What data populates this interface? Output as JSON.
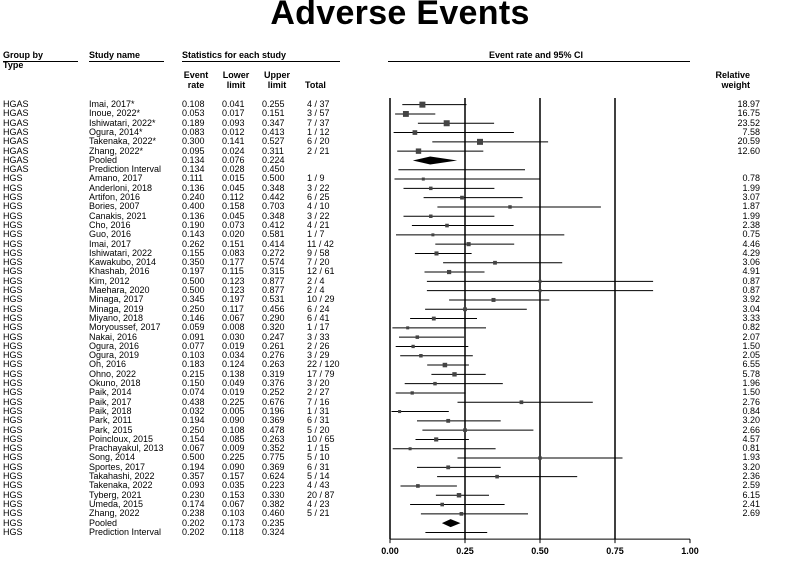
{
  "title": "Adverse Events",
  "headers": {
    "group_by": "Group by",
    "type": "Type",
    "study_name": "Study name",
    "stats": "Statistics for each study",
    "event_rate_1": "Event",
    "event_rate_2": "rate",
    "lower_1": "Lower",
    "lower_2": "limit",
    "upper_1": "Upper",
    "upper_2": "limit",
    "total": "Total",
    "ci": "Event rate and 95% CI",
    "relative_1": "Relative",
    "relative_2": "weight"
  },
  "chart_data": {
    "type": "forest",
    "title": "Adverse Events",
    "xlim": [
      0,
      1
    ],
    "xticks": [
      "0.00",
      "0.25",
      "0.50",
      "0.75",
      "1.00"
    ],
    "reference_lines": [
      0.25,
      0.5,
      0.75
    ],
    "rows": [
      {
        "group": "HGAS",
        "study": "Imai, 2017*",
        "rate": 0.108,
        "lower": 0.041,
        "upper": 0.255,
        "rate_s": "0.108",
        "lower_s": "0.041",
        "upper_s": "0.255",
        "total": "4 / 37",
        "weight": "18.97",
        "kind": "study"
      },
      {
        "group": "HGAS",
        "study": "Inoue, 2022*",
        "rate": 0.053,
        "lower": 0.017,
        "upper": 0.151,
        "rate_s": "0.053",
        "lower_s": "0.017",
        "upper_s": "0.151",
        "total": "3 / 57",
        "weight": "16.75",
        "kind": "study"
      },
      {
        "group": "HGAS",
        "study": "Ishiwatari, 2022*",
        "rate": 0.189,
        "lower": 0.093,
        "upper": 0.347,
        "rate_s": "0.189",
        "lower_s": "0.093",
        "upper_s": "0.347",
        "total": "7 / 37",
        "weight": "23.52",
        "kind": "study"
      },
      {
        "group": "HGAS",
        "study": "Ogura, 2014*",
        "rate": 0.083,
        "lower": 0.012,
        "upper": 0.413,
        "rate_s": "0.083",
        "lower_s": "0.012",
        "upper_s": "0.413",
        "total": "1 / 12",
        "weight": "7.58",
        "kind": "study"
      },
      {
        "group": "HGAS",
        "study": "Takenaka, 2022*",
        "rate": 0.3,
        "lower": 0.141,
        "upper": 0.527,
        "rate_s": "0.300",
        "lower_s": "0.141",
        "upper_s": "0.527",
        "total": "6 / 20",
        "weight": "20.59",
        "kind": "study"
      },
      {
        "group": "HGAS",
        "study": "Zhang, 2022*",
        "rate": 0.095,
        "lower": 0.024,
        "upper": 0.311,
        "rate_s": "0.095",
        "lower_s": "0.024",
        "upper_s": "0.311",
        "total": "2 / 21",
        "weight": "12.60",
        "kind": "study"
      },
      {
        "group": "HGAS",
        "study": "Pooled",
        "rate": 0.134,
        "lower": 0.076,
        "upper": 0.224,
        "rate_s": "0.134",
        "lower_s": "0.076",
        "upper_s": "0.224",
        "total": "",
        "weight": "",
        "kind": "pooled"
      },
      {
        "group": "HGAS",
        "study": "Prediction Interval",
        "rate": 0.134,
        "lower": 0.028,
        "upper": 0.45,
        "rate_s": "0.134",
        "lower_s": "0.028",
        "upper_s": "0.450",
        "total": "",
        "weight": "",
        "kind": "pi"
      },
      {
        "group": "HGS",
        "study": "Amano, 2017",
        "rate": 0.111,
        "lower": 0.015,
        "upper": 0.5,
        "rate_s": "0.111",
        "lower_s": "0.015",
        "upper_s": "0.500",
        "total": "1 / 9",
        "weight": "0.78",
        "kind": "study"
      },
      {
        "group": "HGS",
        "study": "Anderloni, 2018",
        "rate": 0.136,
        "lower": 0.045,
        "upper": 0.348,
        "rate_s": "0.136",
        "lower_s": "0.045",
        "upper_s": "0.348",
        "total": "3 / 22",
        "weight": "1.99",
        "kind": "study"
      },
      {
        "group": "HGS",
        "study": "Artifon, 2016",
        "rate": 0.24,
        "lower": 0.112,
        "upper": 0.442,
        "rate_s": "0.240",
        "lower_s": "0.112",
        "upper_s": "0.442",
        "total": "6 / 25",
        "weight": "3.07",
        "kind": "study"
      },
      {
        "group": "HGS",
        "study": "Bories, 2007",
        "rate": 0.4,
        "lower": 0.158,
        "upper": 0.703,
        "rate_s": "0.400",
        "lower_s": "0.158",
        "upper_s": "0.703",
        "total": "4 / 10",
        "weight": "1.87",
        "kind": "study"
      },
      {
        "group": "HGS",
        "study": "Canakis, 2021",
        "rate": 0.136,
        "lower": 0.045,
        "upper": 0.348,
        "rate_s": "0.136",
        "lower_s": "0.045",
        "upper_s": "0.348",
        "total": "3 / 22",
        "weight": "1.99",
        "kind": "study"
      },
      {
        "group": "HGS",
        "study": "Cho, 2016",
        "rate": 0.19,
        "lower": 0.073,
        "upper": 0.412,
        "rate_s": "0.190",
        "lower_s": "0.073",
        "upper_s": "0.412",
        "total": "4 / 21",
        "weight": "2.38",
        "kind": "study"
      },
      {
        "group": "HGS",
        "study": "Guo, 2016",
        "rate": 0.143,
        "lower": 0.02,
        "upper": 0.581,
        "rate_s": "0.143",
        "lower_s": "0.020",
        "upper_s": "0.581",
        "total": "1 / 7",
        "weight": "0.75",
        "kind": "study"
      },
      {
        "group": "HGS",
        "study": "Imai, 2017",
        "rate": 0.262,
        "lower": 0.151,
        "upper": 0.414,
        "rate_s": "0.262",
        "lower_s": "0.151",
        "upper_s": "0.414",
        "total": "11 / 42",
        "weight": "4.46",
        "kind": "study"
      },
      {
        "group": "HGS",
        "study": "Ishiwatari, 2022",
        "rate": 0.155,
        "lower": 0.083,
        "upper": 0.272,
        "rate_s": "0.155",
        "lower_s": "0.083",
        "upper_s": "0.272",
        "total": "9 / 58",
        "weight": "4.29",
        "kind": "study"
      },
      {
        "group": "HGS",
        "study": "Kawakubo, 2014",
        "rate": 0.35,
        "lower": 0.177,
        "upper": 0.574,
        "rate_s": "0.350",
        "lower_s": "0.177",
        "upper_s": "0.574",
        "total": "7 / 20",
        "weight": "3.06",
        "kind": "study"
      },
      {
        "group": "HGS",
        "study": "Khashab, 2016",
        "rate": 0.197,
        "lower": 0.115,
        "upper": 0.315,
        "rate_s": "0.197",
        "lower_s": "0.115",
        "upper_s": "0.315",
        "total": "12 / 61",
        "weight": "4.91",
        "kind": "study"
      },
      {
        "group": "HGS",
        "study": "Kim, 2012",
        "rate": 0.5,
        "lower": 0.123,
        "upper": 0.877,
        "rate_s": "0.500",
        "lower_s": "0.123",
        "upper_s": "0.877",
        "total": "2 / 4",
        "weight": "0.87",
        "kind": "study"
      },
      {
        "group": "HGS",
        "study": "Maehara, 2020",
        "rate": 0.5,
        "lower": 0.123,
        "upper": 0.877,
        "rate_s": "0.500",
        "lower_s": "0.123",
        "upper_s": "0.877",
        "total": "2 / 4",
        "weight": "0.87",
        "kind": "study"
      },
      {
        "group": "HGS",
        "study": "Minaga, 2017",
        "rate": 0.345,
        "lower": 0.197,
        "upper": 0.531,
        "rate_s": "0.345",
        "lower_s": "0.197",
        "upper_s": "0.531",
        "total": "10 / 29",
        "weight": "3.92",
        "kind": "study"
      },
      {
        "group": "HGS",
        "study": "Minaga, 2019",
        "rate": 0.25,
        "lower": 0.117,
        "upper": 0.456,
        "rate_s": "0.250",
        "lower_s": "0.117",
        "upper_s": "0.456",
        "total": "6 / 24",
        "weight": "3.04",
        "kind": "study"
      },
      {
        "group": "HGS",
        "study": "Miyano, 2018",
        "rate": 0.146,
        "lower": 0.067,
        "upper": 0.29,
        "rate_s": "0.146",
        "lower_s": "0.067",
        "upper_s": "0.290",
        "total": "6 / 41",
        "weight": "3.33",
        "kind": "study"
      },
      {
        "group": "HGS",
        "study": "Moryoussef, 2017",
        "rate": 0.059,
        "lower": 0.008,
        "upper": 0.32,
        "rate_s": "0.059",
        "lower_s": "0.008",
        "upper_s": "0.320",
        "total": "1 / 17",
        "weight": "0.82",
        "kind": "study"
      },
      {
        "group": "HGS",
        "study": "Nakai, 2016",
        "rate": 0.091,
        "lower": 0.03,
        "upper": 0.247,
        "rate_s": "0.091",
        "lower_s": "0.030",
        "upper_s": "0.247",
        "total": "3 / 33",
        "weight": "2.07",
        "kind": "study"
      },
      {
        "group": "HGS",
        "study": "Ogura, 2016",
        "rate": 0.077,
        "lower": 0.019,
        "upper": 0.261,
        "rate_s": "0.077",
        "lower_s": "0.019",
        "upper_s": "0.261",
        "total": "2 / 26",
        "weight": "1.50",
        "kind": "study"
      },
      {
        "group": "HGS",
        "study": "Ogura, 2019",
        "rate": 0.103,
        "lower": 0.034,
        "upper": 0.276,
        "rate_s": "0.103",
        "lower_s": "0.034",
        "upper_s": "0.276",
        "total": "3 / 29",
        "weight": "2.05",
        "kind": "study"
      },
      {
        "group": "HGS",
        "study": "Oh, 2016",
        "rate": 0.183,
        "lower": 0.124,
        "upper": 0.263,
        "rate_s": "0.183",
        "lower_s": "0.124",
        "upper_s": "0.263",
        "total": "22 / 120",
        "weight": "6.55",
        "kind": "study"
      },
      {
        "group": "HGS",
        "study": "Ohno, 2022",
        "rate": 0.215,
        "lower": 0.138,
        "upper": 0.319,
        "rate_s": "0.215",
        "lower_s": "0.138",
        "upper_s": "0.319",
        "total": "17 / 79",
        "weight": "5.78",
        "kind": "study"
      },
      {
        "group": "HGS",
        "study": "Okuno, 2018",
        "rate": 0.15,
        "lower": 0.049,
        "upper": 0.376,
        "rate_s": "0.150",
        "lower_s": "0.049",
        "upper_s": "0.376",
        "total": "3 / 20",
        "weight": "1.96",
        "kind": "study"
      },
      {
        "group": "HGS",
        "study": "Paik, 2014",
        "rate": 0.074,
        "lower": 0.019,
        "upper": 0.252,
        "rate_s": "0.074",
        "lower_s": "0.019",
        "upper_s": "0.252",
        "total": "2 / 27",
        "weight": "1.50",
        "kind": "study"
      },
      {
        "group": "HGS",
        "study": "Paik, 2017",
        "rate": 0.438,
        "lower": 0.225,
        "upper": 0.676,
        "rate_s": "0.438",
        "lower_s": "0.225",
        "upper_s": "0.676",
        "total": "7 / 16",
        "weight": "2.76",
        "kind": "study"
      },
      {
        "group": "HGS",
        "study": "Paik, 2018",
        "rate": 0.032,
        "lower": 0.005,
        "upper": 0.196,
        "rate_s": "0.032",
        "lower_s": "0.005",
        "upper_s": "0.196",
        "total": "1 / 31",
        "weight": "0.84",
        "kind": "study"
      },
      {
        "group": "HGS",
        "study": "Park, 2011",
        "rate": 0.194,
        "lower": 0.09,
        "upper": 0.369,
        "rate_s": "0.194",
        "lower_s": "0.090",
        "upper_s": "0.369",
        "total": "6 / 31",
        "weight": "3.20",
        "kind": "study"
      },
      {
        "group": "HGS",
        "study": "Park, 2015",
        "rate": 0.25,
        "lower": 0.108,
        "upper": 0.478,
        "rate_s": "0.250",
        "lower_s": "0.108",
        "upper_s": "0.478",
        "total": "5 / 20",
        "weight": "2.66",
        "kind": "study"
      },
      {
        "group": "HGS",
        "study": "Poincloux, 2015",
        "rate": 0.154,
        "lower": 0.085,
        "upper": 0.263,
        "rate_s": "0.154",
        "lower_s": "0.085",
        "upper_s": "0.263",
        "total": "10 / 65",
        "weight": "4.57",
        "kind": "study"
      },
      {
        "group": "HGS",
        "study": "Prachayakul, 2013",
        "rate": 0.067,
        "lower": 0.009,
        "upper": 0.352,
        "rate_s": "0.067",
        "lower_s": "0.009",
        "upper_s": "0.352",
        "total": "1 / 15",
        "weight": "0.81",
        "kind": "study"
      },
      {
        "group": "HGS",
        "study": "Song, 2014",
        "rate": 0.5,
        "lower": 0.225,
        "upper": 0.775,
        "rate_s": "0.500",
        "lower_s": "0.225",
        "upper_s": "0.775",
        "total": "5 / 10",
        "weight": "1.93",
        "kind": "study"
      },
      {
        "group": "HGS",
        "study": "Sportes, 2017",
        "rate": 0.194,
        "lower": 0.09,
        "upper": 0.369,
        "rate_s": "0.194",
        "lower_s": "0.090",
        "upper_s": "0.369",
        "total": "6 / 31",
        "weight": "3.20",
        "kind": "study"
      },
      {
        "group": "HGS",
        "study": "Takahashi, 2022",
        "rate": 0.357,
        "lower": 0.157,
        "upper": 0.624,
        "rate_s": "0.357",
        "lower_s": "0.157",
        "upper_s": "0.624",
        "total": "5 / 14",
        "weight": "2.36",
        "kind": "study"
      },
      {
        "group": "HGS",
        "study": "Takenaka, 2022",
        "rate": 0.093,
        "lower": 0.035,
        "upper": 0.223,
        "rate_s": "0.093",
        "lower_s": "0.035",
        "upper_s": "0.223",
        "total": "4 / 43",
        "weight": "2.59",
        "kind": "study"
      },
      {
        "group": "HGS",
        "study": "Tyberg, 2021",
        "rate": 0.23,
        "lower": 0.153,
        "upper": 0.33,
        "rate_s": "0.230",
        "lower_s": "0.153",
        "upper_s": "0.330",
        "total": "20 / 87",
        "weight": "6.15",
        "kind": "study"
      },
      {
        "group": "HGS",
        "study": "Umeda, 2015",
        "rate": 0.174,
        "lower": 0.067,
        "upper": 0.382,
        "rate_s": "0.174",
        "lower_s": "0.067",
        "upper_s": "0.382",
        "total": "4 / 23",
        "weight": "2.41",
        "kind": "study"
      },
      {
        "group": "HGS",
        "study": "Zhang, 2022",
        "rate": 0.238,
        "lower": 0.103,
        "upper": 0.46,
        "rate_s": "0.238",
        "lower_s": "0.103",
        "upper_s": "0.460",
        "total": "5 / 21",
        "weight": "2.69",
        "kind": "study"
      },
      {
        "group": "HGS",
        "study": "Pooled",
        "rate": 0.202,
        "lower": 0.173,
        "upper": 0.235,
        "rate_s": "0.202",
        "lower_s": "0.173",
        "upper_s": "0.235",
        "total": "",
        "weight": "",
        "kind": "pooled"
      },
      {
        "group": "HGS",
        "study": "Prediction Interval",
        "rate": 0.202,
        "lower": 0.118,
        "upper": 0.324,
        "rate_s": "0.202",
        "lower_s": "0.118",
        "upper_s": "0.324",
        "total": "",
        "weight": "",
        "kind": "pi"
      }
    ]
  }
}
